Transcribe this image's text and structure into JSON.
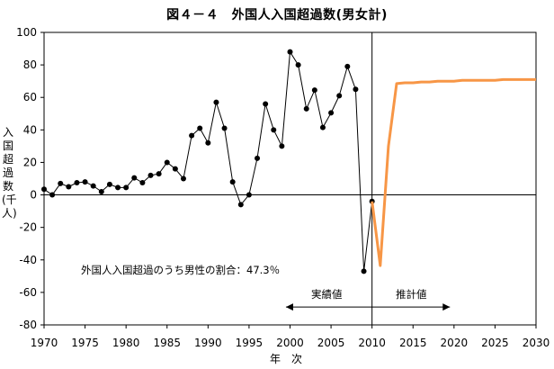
{
  "chart_data": {
    "type": "line",
    "title": "図４－４　外国人入国超過数(男女計)",
    "xlabel": "年　次",
    "ylabel": "入国超過数(千人)",
    "xlim": [
      1970,
      2030
    ],
    "ylim": [
      -80,
      100
    ],
    "x_ticks": [
      1970,
      1975,
      1980,
      1985,
      1990,
      1995,
      2000,
      2005,
      2010,
      2015,
      2020,
      2025,
      2030
    ],
    "y_ticks": [
      -80,
      -60,
      -40,
      -20,
      0,
      20,
      40,
      60,
      80,
      100
    ],
    "divider_x": 2010,
    "annotation": "外国人入国超過のうち男性の割合：47.3％",
    "region_labels": {
      "actual": "実績値",
      "projected": "推計値"
    },
    "series": [
      {
        "style": "black line with markers",
        "color": "#000000",
        "points": [
          [
            1970,
            3.5
          ],
          [
            1971,
            0
          ],
          [
            1972,
            7
          ],
          [
            1973,
            5
          ],
          [
            1974,
            7.5
          ],
          [
            1975,
            8
          ],
          [
            1976,
            5.5
          ],
          [
            1977,
            2
          ],
          [
            1978,
            6.5
          ],
          [
            1979,
            4.5
          ],
          [
            1980,
            4.5
          ],
          [
            1981,
            10.5
          ],
          [
            1982,
            7.5
          ],
          [
            1983,
            12
          ],
          [
            1984,
            13
          ],
          [
            1985,
            20
          ],
          [
            1986,
            16
          ],
          [
            1987,
            10
          ],
          [
            1988,
            36.5
          ],
          [
            1989,
            41
          ],
          [
            1990,
            32
          ],
          [
            1991,
            57
          ],
          [
            1992,
            41
          ],
          [
            1993,
            8
          ],
          [
            1994,
            -6
          ],
          [
            1995,
            0
          ],
          [
            1996,
            22.5
          ],
          [
            1997,
            56
          ],
          [
            1998,
            40
          ],
          [
            1999,
            30
          ],
          [
            2000,
            88
          ],
          [
            2001,
            80
          ],
          [
            2002,
            53
          ],
          [
            2003,
            64.5
          ],
          [
            2004,
            41.5
          ],
          [
            2005,
            50.5
          ],
          [
            2006,
            61
          ],
          [
            2007,
            79
          ],
          [
            2008,
            65
          ],
          [
            2009,
            -47
          ],
          [
            2010,
            -4
          ]
        ]
      },
      {
        "style": "orange thick line",
        "color": "#F79646",
        "points": [
          [
            2010,
            -4
          ],
          [
            2011,
            -43.5
          ],
          [
            2012,
            30
          ],
          [
            2013,
            68.5
          ],
          [
            2014,
            69
          ],
          [
            2015,
            69
          ],
          [
            2016,
            69.5
          ],
          [
            2017,
            69.5
          ],
          [
            2018,
            70
          ],
          [
            2019,
            70
          ],
          [
            2020,
            70
          ],
          [
            2021,
            70.5
          ],
          [
            2022,
            70.5
          ],
          [
            2023,
            70.5
          ],
          [
            2024,
            70.5
          ],
          [
            2025,
            70.5
          ],
          [
            2026,
            71
          ],
          [
            2027,
            71
          ],
          [
            2028,
            71
          ],
          [
            2029,
            71
          ],
          [
            2030,
            71
          ]
        ]
      }
    ]
  }
}
